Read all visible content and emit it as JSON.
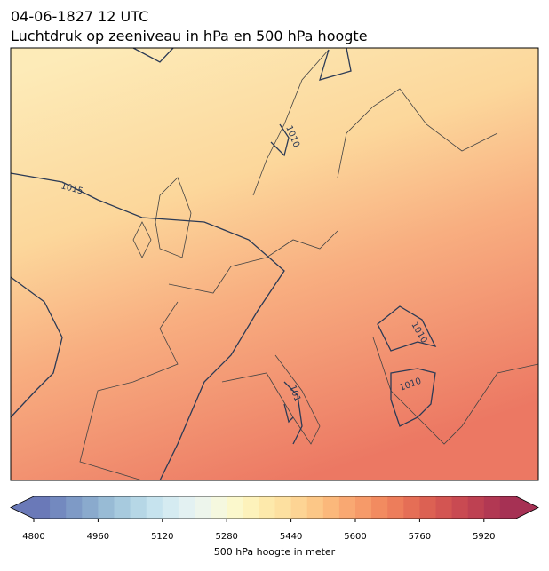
{
  "header": {
    "title_line1": "04-06-1827 12 UTC",
    "title_line2": "Luchtdruk op zeeniveau in hPa en 500 hPa hoogte"
  },
  "map": {
    "contour_labels": [
      "1015",
      "1010",
      "1010",
      "1010",
      "101"
    ]
  },
  "colorbar": {
    "label": "500 hPa hoogte in meter",
    "lim": [
      4800,
      6000
    ],
    "ticks": [
      4800,
      4960,
      5120,
      5280,
      5440,
      5600,
      5760,
      5920
    ],
    "colors": [
      "#6a79b8",
      "#7389bf",
      "#7e9ac6",
      "#8aaacd",
      "#98bbd5",
      "#a7cade",
      "#b6d7e6",
      "#c6e3ee",
      "#d5ebf1",
      "#e3f1f2",
      "#edf5ec",
      "#f5f8df",
      "#fbf8cc",
      "#fdf2bb",
      "#fde9ab",
      "#fde0a0",
      "#fdd494",
      "#fcc787",
      "#fbb87b",
      "#f9a872",
      "#f69a69",
      "#f28b60",
      "#ed7d5b",
      "#e56e56",
      "#dc6153",
      "#d35552",
      "#c94a52",
      "#be4152",
      "#b23853",
      "#a63154"
    ]
  }
}
